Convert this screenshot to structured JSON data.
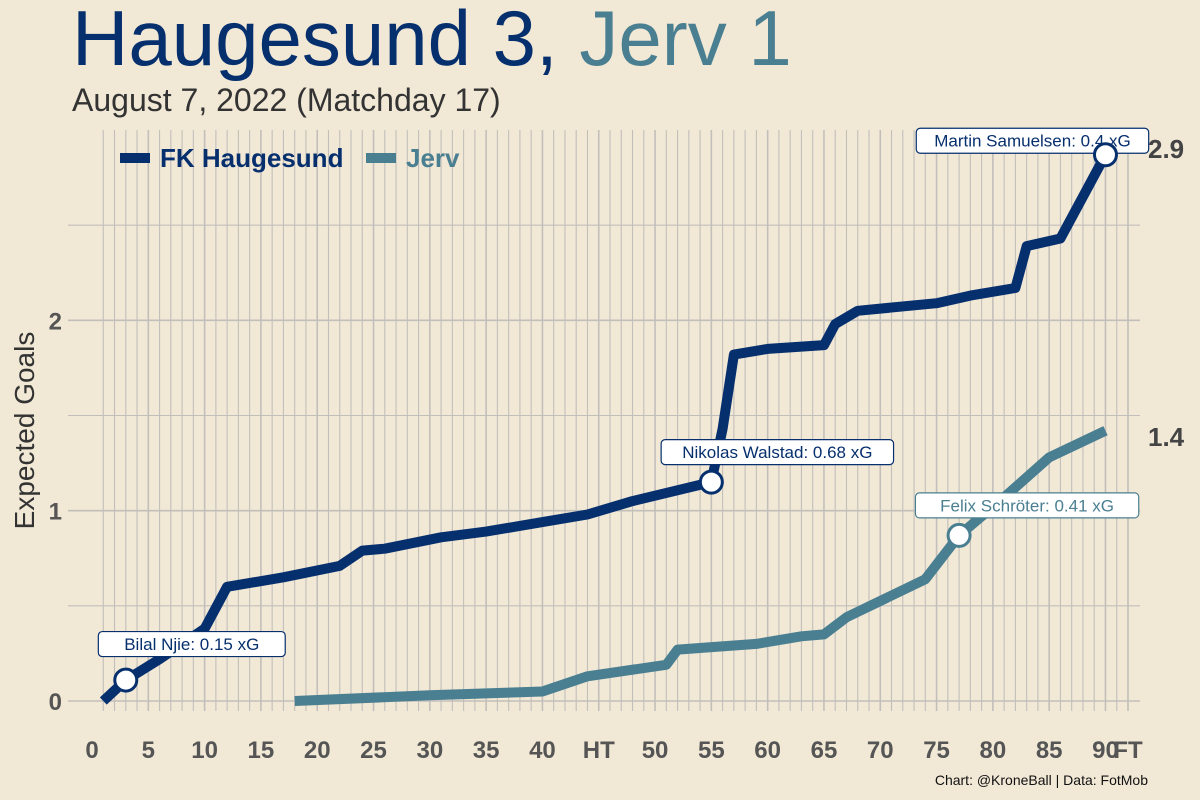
{
  "header": {
    "home_part": "Haugesund 3",
    "separator": ",",
    "away_part": "Jerv 1",
    "subtitle": "August 7, 2022 (Matchday 17)"
  },
  "caption": "Chart: @KroneBall | Data: FotMob",
  "colors": {
    "home": "#062f6e",
    "away": "#4a7f91",
    "background": "#f1e8d6",
    "grid": "#c2bfbb"
  },
  "chart_data": {
    "type": "line",
    "title": "Haugesund 3, Jerv 1",
    "subtitle": "August 7, 2022 (Matchday 17)",
    "xlabel": "",
    "ylabel": "Expected Goals",
    "xlim": [
      0,
      92
    ],
    "ylim": [
      0,
      2.9
    ],
    "x_ticks": [
      {
        "value": 0,
        "label": "0"
      },
      {
        "value": 5,
        "label": "5"
      },
      {
        "value": 10,
        "label": "10"
      },
      {
        "value": 15,
        "label": "15"
      },
      {
        "value": 20,
        "label": "20"
      },
      {
        "value": 25,
        "label": "25"
      },
      {
        "value": 30,
        "label": "30"
      },
      {
        "value": 35,
        "label": "35"
      },
      {
        "value": 40,
        "label": "40"
      },
      {
        "value": 45,
        "label": "HT"
      },
      {
        "value": 50,
        "label": "50"
      },
      {
        "value": 55,
        "label": "55"
      },
      {
        "value": 60,
        "label": "60"
      },
      {
        "value": 65,
        "label": "65"
      },
      {
        "value": 70,
        "label": "70"
      },
      {
        "value": 75,
        "label": "75"
      },
      {
        "value": 80,
        "label": "80"
      },
      {
        "value": 85,
        "label": "85"
      },
      {
        "value": 90,
        "label": "90"
      },
      {
        "value": 92,
        "label": "FT"
      }
    ],
    "y_ticks": [
      {
        "value": 0,
        "label": "0"
      },
      {
        "value": 1,
        "label": "1"
      },
      {
        "value": 2,
        "label": "2"
      }
    ],
    "grid": true,
    "legend_position": "top-left",
    "series": [
      {
        "name": "FK Haugesund",
        "color": "#062f6e",
        "end_label": "2.9",
        "points": [
          [
            1,
            0
          ],
          [
            3,
            0.11
          ],
          [
            6,
            0.22
          ],
          [
            10,
            0.38
          ],
          [
            12,
            0.6
          ],
          [
            17,
            0.65
          ],
          [
            22,
            0.71
          ],
          [
            24,
            0.79
          ],
          [
            26,
            0.8
          ],
          [
            31,
            0.86
          ],
          [
            35,
            0.89
          ],
          [
            40,
            0.94
          ],
          [
            44,
            0.98
          ],
          [
            48,
            1.05
          ],
          [
            55,
            1.15
          ],
          [
            56,
            1.43
          ],
          [
            57,
            1.82
          ],
          [
            60,
            1.85
          ],
          [
            65,
            1.87
          ],
          [
            66,
            1.98
          ],
          [
            68,
            2.05
          ],
          [
            75,
            2.09
          ],
          [
            78,
            2.13
          ],
          [
            82,
            2.17
          ],
          [
            83,
            2.39
          ],
          [
            86,
            2.43
          ],
          [
            90,
            2.87
          ]
        ],
        "goals": [
          {
            "minute": 3,
            "xg_cum": 0.11,
            "label": "Bilal Njie: 0.15 xG"
          },
          {
            "minute": 55,
            "xg_cum": 1.15,
            "label": "Nikolas Walstad: 0.68 xG"
          },
          {
            "minute": 90,
            "xg_cum": 2.87,
            "label": "Martin Samuelsen: 0.4 xG"
          }
        ]
      },
      {
        "name": "Jerv",
        "color": "#4a7f91",
        "end_label": "1.4",
        "points": [
          [
            18,
            0
          ],
          [
            30,
            0.03
          ],
          [
            40,
            0.05
          ],
          [
            44,
            0.13
          ],
          [
            51,
            0.19
          ],
          [
            52,
            0.27
          ],
          [
            59,
            0.3
          ],
          [
            63,
            0.34
          ],
          [
            65,
            0.35
          ],
          [
            67,
            0.44
          ],
          [
            74,
            0.64
          ],
          [
            77,
            0.87
          ],
          [
            81,
            1.07
          ],
          [
            85,
            1.28
          ],
          [
            90,
            1.42
          ]
        ],
        "goals": [
          {
            "minute": 77,
            "xg_cum": 0.87,
            "label": "Felix Schröter: 0.41 xG"
          }
        ]
      }
    ]
  }
}
